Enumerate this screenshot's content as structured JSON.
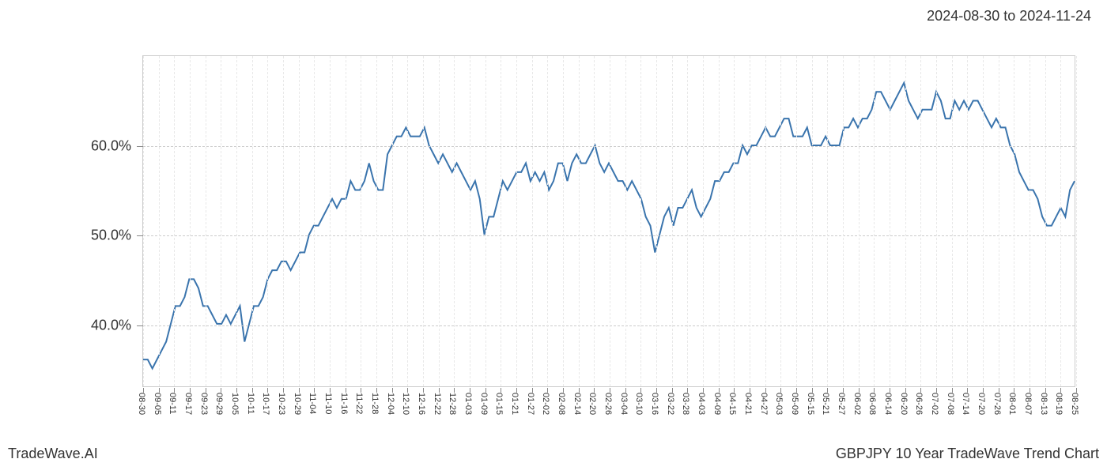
{
  "header": {
    "date_range": "2024-08-30 to 2024-11-24"
  },
  "footer": {
    "left": "TradeWave.AI",
    "right": "GBPJPY 10 Year TradeWave Trend Chart"
  },
  "chart": {
    "type": "line",
    "background_color": "#ffffff",
    "border_color": "#cccccc",
    "grid_color": "#cccccc",
    "vgrid_color": "#e8e8e8",
    "line_color": "#3a74ad",
    "line_width": 2,
    "highlight": {
      "color": "#dce9d5",
      "opacity": 0.7,
      "x_start": "08-30",
      "x_end": "11-24"
    },
    "ylim": [
      33,
      70
    ],
    "yticks": [
      40,
      50,
      60
    ],
    "ytick_labels": [
      "40.0%",
      "50.0%",
      "60.0%"
    ],
    "x_labels": [
      "08-30",
      "09-05",
      "09-11",
      "09-17",
      "09-23",
      "09-29",
      "10-05",
      "10-11",
      "10-17",
      "10-23",
      "10-29",
      "11-04",
      "11-10",
      "11-16",
      "11-22",
      "11-28",
      "12-04",
      "12-10",
      "12-16",
      "12-22",
      "12-28",
      "01-03",
      "01-09",
      "01-15",
      "01-21",
      "01-27",
      "02-02",
      "02-08",
      "02-14",
      "02-20",
      "02-26",
      "03-04",
      "03-10",
      "03-16",
      "03-22",
      "03-28",
      "04-03",
      "04-09",
      "04-15",
      "04-21",
      "04-27",
      "05-03",
      "05-09",
      "05-15",
      "05-21",
      "05-27",
      "06-02",
      "06-08",
      "06-14",
      "06-20",
      "06-26",
      "07-02",
      "07-08",
      "07-14",
      "07-20",
      "07-26",
      "08-01",
      "08-07",
      "08-13",
      "08-19",
      "08-25"
    ],
    "label_fontsize": 11,
    "ytick_fontsize": 18,
    "values": [
      36,
      36,
      35,
      36,
      37,
      38,
      40,
      42,
      42,
      43,
      45,
      45,
      44,
      42,
      42,
      41,
      40,
      40,
      41,
      40,
      41,
      42,
      38,
      40,
      42,
      42,
      43,
      45,
      46,
      46,
      47,
      47,
      46,
      47,
      48,
      48,
      50,
      51,
      51,
      52,
      53,
      54,
      53,
      54,
      54,
      56,
      55,
      55,
      56,
      58,
      56,
      55,
      55,
      59,
      60,
      61,
      61,
      62,
      61,
      61,
      61,
      62,
      60,
      59,
      58,
      59,
      58,
      57,
      58,
      57,
      56,
      55,
      56,
      54,
      50,
      52,
      52,
      54,
      56,
      55,
      56,
      57,
      57,
      58,
      56,
      57,
      56,
      57,
      55,
      56,
      58,
      58,
      56,
      58,
      59,
      58,
      58,
      59,
      60,
      58,
      57,
      58,
      57,
      56,
      56,
      55,
      56,
      55,
      54,
      52,
      51,
      48,
      50,
      52,
      53,
      51,
      53,
      53,
      54,
      55,
      53,
      52,
      53,
      54,
      56,
      56,
      57,
      57,
      58,
      58,
      60,
      59,
      60,
      60,
      61,
      62,
      61,
      61,
      62,
      63,
      63,
      61,
      61,
      61,
      62,
      60,
      60,
      60,
      61,
      60,
      60,
      60,
      62,
      62,
      63,
      62,
      63,
      63,
      64,
      66,
      66,
      65,
      64,
      65,
      66,
      67,
      65,
      64,
      63,
      64,
      64,
      64,
      66,
      65,
      63,
      63,
      65,
      64,
      65,
      64,
      65,
      65,
      64,
      63,
      62,
      63,
      62,
      62,
      60,
      59,
      57,
      56,
      55,
      55,
      54,
      52,
      51,
      51,
      52,
      53,
      52,
      55,
      56
    ]
  }
}
